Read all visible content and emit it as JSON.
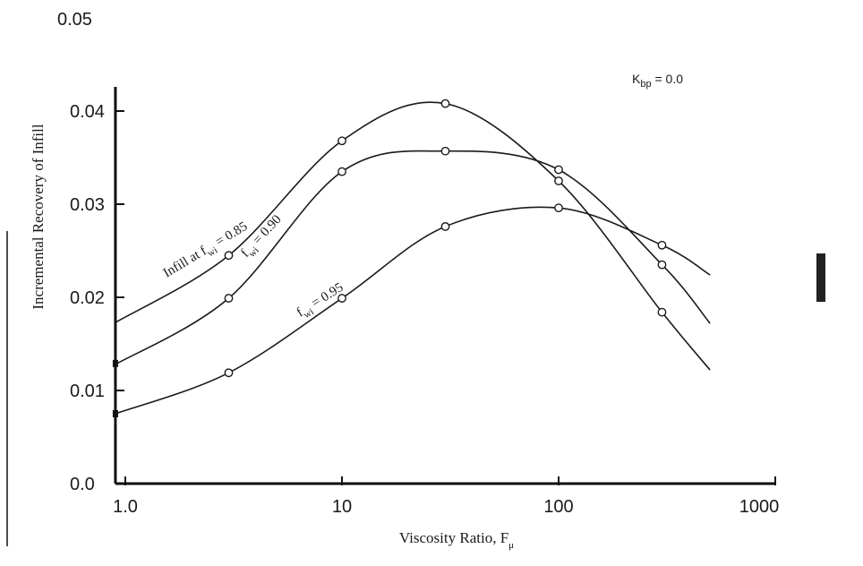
{
  "chart_data": {
    "type": "line",
    "xscale": "log",
    "xlim": [
      0.9,
      1000
    ],
    "ylim": [
      0.0,
      0.05
    ],
    "xticks": [
      "1.0",
      "10",
      "100",
      "1000"
    ],
    "yticks": [
      "0.0",
      "0.01",
      "0.02",
      "0.03",
      "0.04",
      "0.05"
    ],
    "xlabel": "Viscosity Ratio, F",
    "xlabel_sub": "μ",
    "ylabel": "Incremental Recovery of Infill",
    "annotation": {
      "main": "K",
      "sub": "bp",
      "rest": " = 0.0"
    },
    "series": [
      {
        "name": "Infill at f = 0.85",
        "label_main": "Infill at f",
        "label_sub": "wi",
        "label_rest": " = 0.85",
        "x": [
          0.9,
          3,
          10,
          30,
          100,
          300,
          500
        ],
        "y": [
          0.0173,
          0.0245,
          0.0368,
          0.0408,
          0.0325,
          0.0184,
          0.0122
        ]
      },
      {
        "name": "f = 0.90",
        "label_main": "f",
        "label_sub": "wi",
        "label_rest": " = 0.90",
        "x": [
          0.9,
          3,
          10,
          30,
          100,
          300,
          500
        ],
        "y": [
          0.0128,
          0.0199,
          0.0335,
          0.0357,
          0.0337,
          0.0235,
          0.0172
        ]
      },
      {
        "name": "f = 0.95",
        "label_main": "f",
        "label_sub": "wi",
        "label_rest": " = 0.95",
        "x": [
          0.9,
          3,
          10,
          30,
          100,
          300,
          500
        ],
        "y": [
          0.0075,
          0.0119,
          0.0199,
          0.0276,
          0.0296,
          0.0256,
          0.0224
        ]
      }
    ]
  }
}
